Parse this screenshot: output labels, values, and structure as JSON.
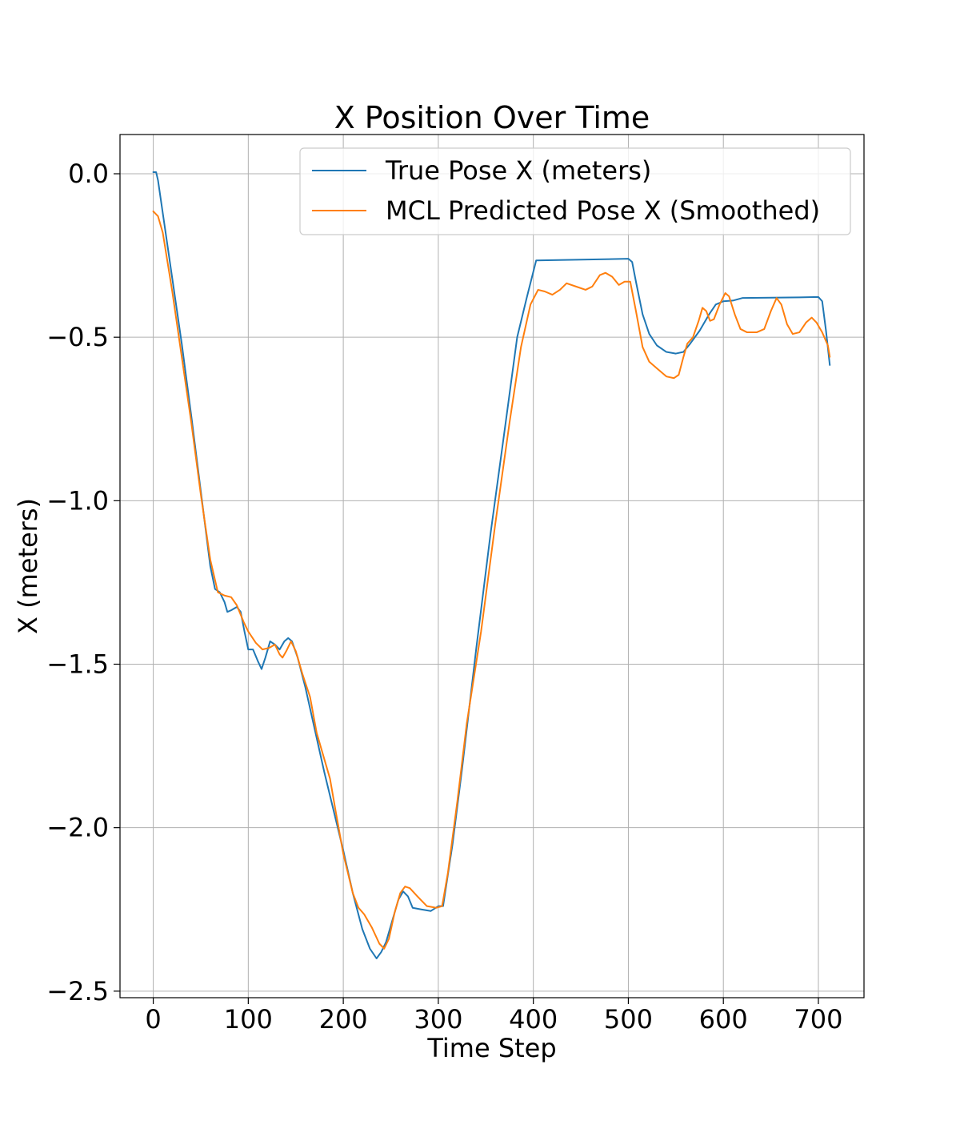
{
  "chart_data": {
    "type": "line",
    "title": "X Position Over Time",
    "xlabel": "Time Step",
    "ylabel": "X (meters)",
    "xlim": [
      -35,
      748
    ],
    "ylim": [
      -2.52,
      0.12
    ],
    "xticks": [
      0,
      100,
      200,
      300,
      400,
      500,
      600,
      700
    ],
    "xtick_labels": [
      "0",
      "100",
      "200",
      "300",
      "400",
      "500",
      "600",
      "700"
    ],
    "yticks": [
      0.0,
      -0.5,
      -1.0,
      -1.5,
      -2.0,
      -2.5
    ],
    "ytick_labels": [
      "0.0",
      "−0.5",
      "−1.0",
      "−1.5",
      "−2.0",
      "−2.5"
    ],
    "grid": true,
    "legend_position": "top-right",
    "series": [
      {
        "name": "True Pose X (meters)",
        "color": "#1f77b4",
        "points": [
          [
            0,
            0.005
          ],
          [
            3,
            0.005
          ],
          [
            5,
            -0.02
          ],
          [
            10,
            -0.12
          ],
          [
            20,
            -0.32
          ],
          [
            30,
            -0.52
          ],
          [
            40,
            -0.74
          ],
          [
            50,
            -0.97
          ],
          [
            60,
            -1.2
          ],
          [
            65,
            -1.27
          ],
          [
            70,
            -1.28
          ],
          [
            75,
            -1.31
          ],
          [
            78,
            -1.34
          ],
          [
            82,
            -1.335
          ],
          [
            88,
            -1.325
          ],
          [
            92,
            -1.34
          ],
          [
            96,
            -1.4
          ],
          [
            100,
            -1.455
          ],
          [
            105,
            -1.455
          ],
          [
            110,
            -1.49
          ],
          [
            114,
            -1.515
          ],
          [
            118,
            -1.48
          ],
          [
            123,
            -1.43
          ],
          [
            128,
            -1.44
          ],
          [
            133,
            -1.455
          ],
          [
            138,
            -1.43
          ],
          [
            142,
            -1.42
          ],
          [
            146,
            -1.43
          ],
          [
            152,
            -1.48
          ],
          [
            160,
            -1.57
          ],
          [
            170,
            -1.7
          ],
          [
            180,
            -1.83
          ],
          [
            190,
            -1.95
          ],
          [
            200,
            -2.07
          ],
          [
            210,
            -2.2
          ],
          [
            220,
            -2.31
          ],
          [
            228,
            -2.37
          ],
          [
            235,
            -2.4
          ],
          [
            240,
            -2.38
          ],
          [
            245,
            -2.35
          ],
          [
            252,
            -2.28
          ],
          [
            258,
            -2.22
          ],
          [
            263,
            -2.195
          ],
          [
            268,
            -2.21
          ],
          [
            273,
            -2.245
          ],
          [
            282,
            -2.25
          ],
          [
            292,
            -2.255
          ],
          [
            300,
            -2.24
          ],
          [
            305,
            -2.24
          ],
          [
            315,
            -2.05
          ],
          [
            325,
            -1.82
          ],
          [
            340,
            -1.45
          ],
          [
            355,
            -1.1
          ],
          [
            370,
            -0.78
          ],
          [
            383,
            -0.5
          ],
          [
            393,
            -0.38
          ],
          [
            403,
            -0.265
          ],
          [
            500,
            -0.26
          ],
          [
            504,
            -0.27
          ],
          [
            508,
            -0.33
          ],
          [
            515,
            -0.43
          ],
          [
            522,
            -0.49
          ],
          [
            530,
            -0.525
          ],
          [
            540,
            -0.545
          ],
          [
            550,
            -0.55
          ],
          [
            558,
            -0.545
          ],
          [
            565,
            -0.52
          ],
          [
            575,
            -0.48
          ],
          [
            585,
            -0.43
          ],
          [
            592,
            -0.4
          ],
          [
            600,
            -0.39
          ],
          [
            610,
            -0.388
          ],
          [
            620,
            -0.38
          ],
          [
            650,
            -0.379
          ],
          [
            680,
            -0.378
          ],
          [
            700,
            -0.377
          ],
          [
            704,
            -0.39
          ],
          [
            708,
            -0.48
          ],
          [
            712,
            -0.585
          ]
        ]
      },
      {
        "name": "MCL Predicted Pose X (Smoothed)",
        "color": "#ff7f0e",
        "points": [
          [
            0,
            -0.115
          ],
          [
            5,
            -0.13
          ],
          [
            10,
            -0.18
          ],
          [
            20,
            -0.36
          ],
          [
            30,
            -0.56
          ],
          [
            40,
            -0.76
          ],
          [
            50,
            -0.98
          ],
          [
            60,
            -1.18
          ],
          [
            68,
            -1.28
          ],
          [
            75,
            -1.29
          ],
          [
            82,
            -1.295
          ],
          [
            88,
            -1.32
          ],
          [
            95,
            -1.37
          ],
          [
            100,
            -1.4
          ],
          [
            108,
            -1.435
          ],
          [
            115,
            -1.455
          ],
          [
            122,
            -1.45
          ],
          [
            128,
            -1.44
          ],
          [
            133,
            -1.47
          ],
          [
            136,
            -1.48
          ],
          [
            140,
            -1.46
          ],
          [
            145,
            -1.43
          ],
          [
            150,
            -1.46
          ],
          [
            157,
            -1.53
          ],
          [
            165,
            -1.6
          ],
          [
            172,
            -1.71
          ],
          [
            180,
            -1.79
          ],
          [
            186,
            -1.85
          ],
          [
            192,
            -1.95
          ],
          [
            200,
            -2.08
          ],
          [
            210,
            -2.2
          ],
          [
            216,
            -2.245
          ],
          [
            222,
            -2.265
          ],
          [
            230,
            -2.305
          ],
          [
            238,
            -2.355
          ],
          [
            243,
            -2.37
          ],
          [
            248,
            -2.34
          ],
          [
            254,
            -2.26
          ],
          [
            260,
            -2.2
          ],
          [
            265,
            -2.18
          ],
          [
            270,
            -2.185
          ],
          [
            278,
            -2.21
          ],
          [
            288,
            -2.24
          ],
          [
            298,
            -2.245
          ],
          [
            304,
            -2.24
          ],
          [
            310,
            -2.14
          ],
          [
            320,
            -1.92
          ],
          [
            330,
            -1.68
          ],
          [
            345,
            -1.4
          ],
          [
            360,
            -1.07
          ],
          [
            375,
            -0.76
          ],
          [
            387,
            -0.53
          ],
          [
            397,
            -0.4
          ],
          [
            405,
            -0.355
          ],
          [
            412,
            -0.36
          ],
          [
            420,
            -0.37
          ],
          [
            428,
            -0.355
          ],
          [
            435,
            -0.335
          ],
          [
            445,
            -0.345
          ],
          [
            455,
            -0.355
          ],
          [
            462,
            -0.345
          ],
          [
            470,
            -0.31
          ],
          [
            476,
            -0.303
          ],
          [
            483,
            -0.315
          ],
          [
            490,
            -0.34
          ],
          [
            496,
            -0.33
          ],
          [
            502,
            -0.33
          ],
          [
            508,
            -0.42
          ],
          [
            515,
            -0.53
          ],
          [
            522,
            -0.575
          ],
          [
            530,
            -0.595
          ],
          [
            540,
            -0.62
          ],
          [
            548,
            -0.625
          ],
          [
            553,
            -0.615
          ],
          [
            558,
            -0.56
          ],
          [
            562,
            -0.52
          ],
          [
            568,
            -0.5
          ],
          [
            574,
            -0.45
          ],
          [
            578,
            -0.41
          ],
          [
            582,
            -0.42
          ],
          [
            586,
            -0.45
          ],
          [
            590,
            -0.445
          ],
          [
            596,
            -0.4
          ],
          [
            602,
            -0.365
          ],
          [
            606,
            -0.375
          ],
          [
            612,
            -0.43
          ],
          [
            618,
            -0.475
          ],
          [
            625,
            -0.485
          ],
          [
            635,
            -0.485
          ],
          [
            643,
            -0.475
          ],
          [
            650,
            -0.42
          ],
          [
            656,
            -0.38
          ],
          [
            661,
            -0.4
          ],
          [
            667,
            -0.46
          ],
          [
            673,
            -0.49
          ],
          [
            680,
            -0.485
          ],
          [
            687,
            -0.455
          ],
          [
            693,
            -0.44
          ],
          [
            698,
            -0.455
          ],
          [
            704,
            -0.485
          ],
          [
            710,
            -0.525
          ],
          [
            712,
            -0.56
          ]
        ]
      }
    ]
  }
}
